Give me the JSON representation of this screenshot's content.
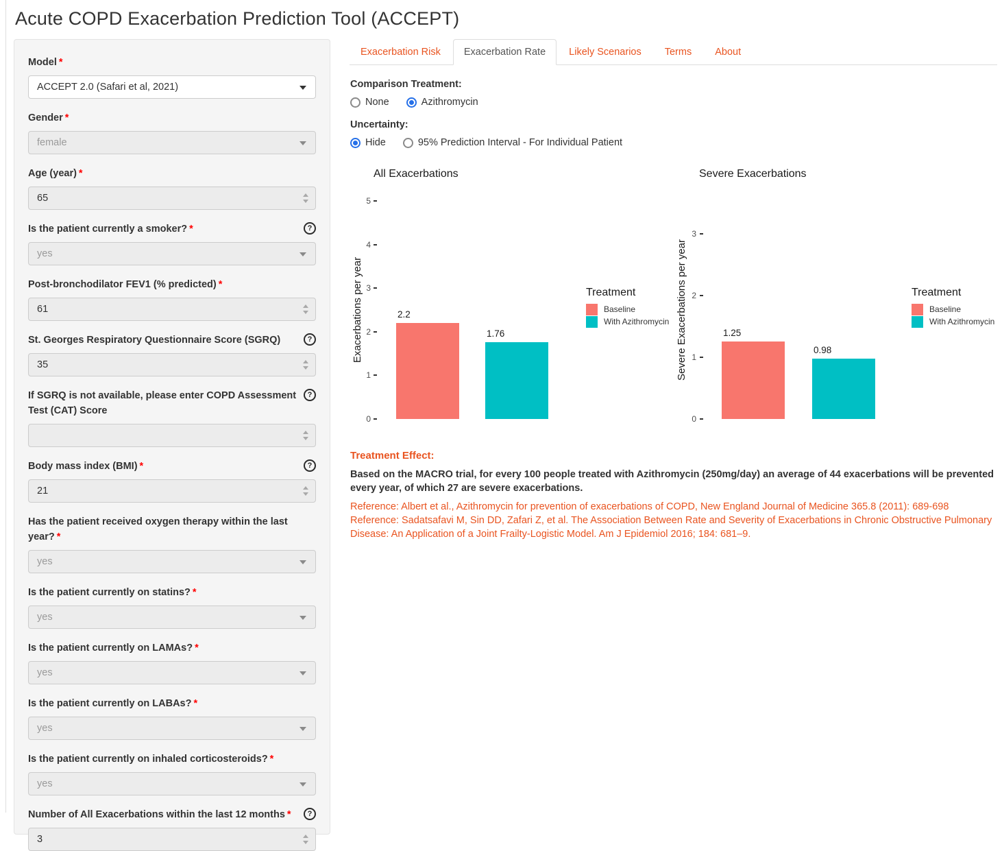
{
  "page": {
    "title": "Acute COPD Exacerbation Prediction Tool (ACCEPT)"
  },
  "colors": {
    "accent_orange": "#e95420",
    "baseline_bar": "#F8766D",
    "treatment_bar": "#00BFC4",
    "radio_selected": "#2670e8",
    "required_asterisk": "#ff0000"
  },
  "tabs": [
    {
      "label": "Exacerbation Risk",
      "active": false
    },
    {
      "label": "Exacerbation Rate",
      "active": true
    },
    {
      "label": "Likely Scenarios",
      "active": false
    },
    {
      "label": "Terms",
      "active": false
    },
    {
      "label": "About",
      "active": false
    }
  ],
  "controls": {
    "comparison": {
      "label": "Comparison Treatment:",
      "options": [
        {
          "label": "None",
          "selected": false,
          "name": "comparison-none-radio"
        },
        {
          "label": "Azithromycin",
          "selected": true,
          "name": "comparison-azithromycin-radio"
        }
      ]
    },
    "uncertainty": {
      "label": "Uncertainty:",
      "options": [
        {
          "label": "Hide",
          "selected": true,
          "name": "uncertainty-hide-radio"
        },
        {
          "label": "95% Prediction Interval - For Individual Patient",
          "selected": false,
          "name": "uncertainty-interval-radio"
        }
      ]
    }
  },
  "sidebar": {
    "fields": [
      {
        "name": "model-select",
        "label": "Model",
        "required": true,
        "help": false,
        "type": "select",
        "value": "ACCEPT 2.0 (Safari et al, 2021)",
        "disabled": false
      },
      {
        "name": "gender-select",
        "label": "Gender",
        "required": true,
        "help": false,
        "type": "select",
        "value": "female",
        "disabled": true
      },
      {
        "name": "age-input",
        "label": "Age (year)",
        "required": true,
        "help": false,
        "type": "number",
        "value": "65"
      },
      {
        "name": "smoker-select",
        "label": "Is the patient currently a smoker?",
        "required": true,
        "help": true,
        "type": "select",
        "value": "yes",
        "disabled": true
      },
      {
        "name": "fev1-input",
        "label": "Post-bronchodilator FEV1 (% predicted)",
        "required": true,
        "help": false,
        "type": "number",
        "value": "61"
      },
      {
        "name": "sgrq-input",
        "label": "St. Georges Respiratory Questionnaire Score (SGRQ)",
        "required": false,
        "help": true,
        "type": "number",
        "value": "35"
      },
      {
        "name": "cat-input",
        "label": "If SGRQ is not available, please enter COPD Assessment Test (CAT) Score",
        "required": false,
        "help": true,
        "type": "number",
        "value": ""
      },
      {
        "name": "bmi-input",
        "label": "Body mass index (BMI)",
        "required": true,
        "help": true,
        "type": "number",
        "value": "21"
      },
      {
        "name": "oxygen-select",
        "label": "Has the patient received oxygen therapy within the last year?",
        "required": true,
        "help": false,
        "type": "select",
        "value": "yes",
        "disabled": true
      },
      {
        "name": "statins-select",
        "label": "Is the patient currently on statins?",
        "required": true,
        "help": false,
        "type": "select",
        "value": "yes",
        "disabled": true
      },
      {
        "name": "lamas-select",
        "label": "Is the patient currently on LAMAs?",
        "required": true,
        "help": false,
        "type": "select",
        "value": "yes",
        "disabled": true
      },
      {
        "name": "labas-select",
        "label": "Is the patient currently on LABAs?",
        "required": true,
        "help": false,
        "type": "select",
        "value": "yes",
        "disabled": true
      },
      {
        "name": "corticosteroids-select",
        "label": "Is the patient currently on inhaled corticosteroids?",
        "required": true,
        "help": false,
        "type": "select",
        "value": "yes",
        "disabled": true
      },
      {
        "name": "exacerbations-count-input",
        "label": "Number of All Exacerbations within the last 12 months",
        "required": true,
        "help": true,
        "type": "number",
        "value": "3"
      }
    ]
  },
  "chart_data": [
    {
      "type": "bar",
      "title": "All Exacerbations",
      "ylabel": "Exacerbations per year",
      "ylim": [
        0,
        5
      ],
      "yticks": [
        0,
        1,
        2,
        3,
        4,
        5
      ],
      "grid": false,
      "legend_title": "Treatment",
      "legend_position": "right",
      "series": [
        {
          "name": "Baseline",
          "value": 2.2,
          "label": "2.2",
          "color": "#F8766D"
        },
        {
          "name": "With Azithromycin",
          "value": 1.76,
          "label": "1.76",
          "color": "#00BFC4"
        }
      ]
    },
    {
      "type": "bar",
      "title": "Severe Exacerbations",
      "ylabel": "Severe Exacerbations per year",
      "ylim": [
        0,
        3
      ],
      "yticks": [
        0,
        1,
        2,
        3
      ],
      "grid": false,
      "legend_title": "Treatment",
      "legend_position": "right",
      "series": [
        {
          "name": "Baseline",
          "value": 1.25,
          "label": "1.25",
          "color": "#F8766D"
        },
        {
          "name": "With Azithromycin",
          "value": 0.98,
          "label": "0.98",
          "color": "#00BFC4"
        }
      ]
    }
  ],
  "treatment_effect": {
    "heading": "Treatment Effect:",
    "body": "Based on the MACRO trial, for every 100 people treated with Azithromycin (250mg/day) an average of 44 exacerbations will be prevented every year, of which 27 are severe exacerbations.",
    "reference1": "Reference: Albert et al., Azithromycin for prevention of exacerbations of COPD, New England Journal of Medicine 365.8 (2011): 689-698",
    "reference2": "Reference: Sadatsafavi M, Sin DD, Zafari Z, et al. The Association Between Rate and Severity of Exacerbations in Chronic Obstructive Pulmonary Disease: An Application of a Joint Frailty-Logistic Model. Am J Epidemiol 2016; 184: 681–9."
  }
}
